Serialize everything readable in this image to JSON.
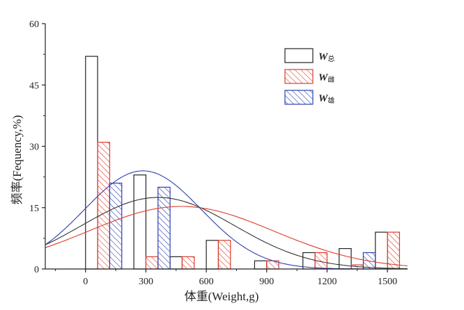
{
  "chart_data": {
    "type": "bar",
    "title": "",
    "xlabel": "体重(Weight,g)",
    "ylabel": "频率(Fequency,%)",
    "xlim": [
      -200,
      1600
    ],
    "ylim": [
      0,
      60
    ],
    "x_ticks": [
      0,
      300,
      600,
      900,
      1200,
      1500
    ],
    "y_ticks": [
      0,
      15,
      30,
      45,
      60
    ],
    "bin_width": 60,
    "grid": false,
    "legend_placement": "top-right",
    "series": [
      {
        "name": "W总",
        "legend_main": "W",
        "legend_sub": "总",
        "color": "#222222",
        "pattern": "none",
        "offset": 0,
        "bars": [
          {
            "x": 0,
            "y": 52
          },
          {
            "x": 240,
            "y": 23
          },
          {
            "x": 420,
            "y": 3
          },
          {
            "x": 600,
            "y": 7
          },
          {
            "x": 840,
            "y": 2
          },
          {
            "x": 1080,
            "y": 4
          },
          {
            "x": 1260,
            "y": 5
          },
          {
            "x": 1440,
            "y": 9
          }
        ]
      },
      {
        "name": "W雌",
        "legend_main": "W",
        "legend_sub": "雌",
        "color": "#e03a2a",
        "pattern": "hatch",
        "offset": 60,
        "bars": [
          {
            "x": 0,
            "y": 31
          },
          {
            "x": 240,
            "y": 3
          },
          {
            "x": 420,
            "y": 3
          },
          {
            "x": 600,
            "y": 7
          },
          {
            "x": 840,
            "y": 2
          },
          {
            "x": 1080,
            "y": 4
          },
          {
            "x": 1260,
            "y": 1
          },
          {
            "x": 1440,
            "y": 9
          }
        ]
      },
      {
        "name": "W雄",
        "legend_main": "W",
        "legend_sub": "雄",
        "color": "#2c3fb0",
        "pattern": "hatch",
        "offset": 120,
        "bars": [
          {
            "x": 0,
            "y": 21
          },
          {
            "x": 240,
            "y": 20
          },
          {
            "x": 1260,
            "y": 4
          }
        ]
      }
    ],
    "fit_curves": [
      {
        "name": "W总 fit",
        "color": "#333333",
        "mean": 360,
        "sd": 380,
        "peak": 17.5
      },
      {
        "name": "W雌 fit",
        "color": "#e03a2a",
        "mean": 475,
        "sd": 460,
        "peak": 15.3
      },
      {
        "name": "W雄 fit",
        "color": "#2c3fb0",
        "mean": 285,
        "sd": 290,
        "peak": 24
      }
    ]
  }
}
